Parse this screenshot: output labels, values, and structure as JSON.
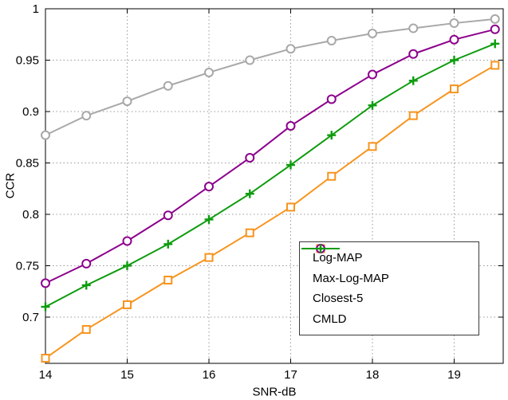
{
  "chart_data": {
    "type": "line",
    "title": "",
    "xlabel": "SNR-dB",
    "ylabel": "CCR",
    "grid": true,
    "legend_position": "inside-lower-right",
    "xlim": [
      14,
      19.6
    ],
    "ylim": [
      0.655,
      1.0
    ],
    "xticks": [
      14,
      15,
      16,
      17,
      18,
      19
    ],
    "yticks": [
      0.7,
      0.75,
      0.8,
      0.85,
      0.9,
      0.95,
      1
    ],
    "x": [
      14,
      14.5,
      15,
      15.5,
      16,
      16.5,
      17,
      17.5,
      18,
      18.5,
      19,
      19.5
    ],
    "series": [
      {
        "name": "Log-MAP",
        "color": "#a8a8a8",
        "marker": "circle",
        "values": [
          0.877,
          0.896,
          0.91,
          0.925,
          0.938,
          0.95,
          0.961,
          0.969,
          0.976,
          0.981,
          0.986,
          0.99
        ]
      },
      {
        "name": "Max-Log-MAP",
        "color": "#f7941e",
        "marker": "square",
        "values": [
          0.66,
          0.688,
          0.712,
          0.736,
          0.758,
          0.782,
          0.807,
          0.837,
          0.866,
          0.896,
          0.922,
          0.945
        ]
      },
      {
        "name": "Closest-5",
        "color": "#8c008c",
        "marker": "circle",
        "values": [
          0.733,
          0.752,
          0.774,
          0.799,
          0.827,
          0.855,
          0.886,
          0.912,
          0.936,
          0.956,
          0.97,
          0.98
        ]
      },
      {
        "name": "CMLD",
        "color": "#0e9c0e",
        "marker": "plus",
        "values": [
          0.71,
          0.731,
          0.75,
          0.771,
          0.795,
          0.82,
          0.848,
          0.877,
          0.906,
          0.93,
          0.95,
          0.966
        ]
      }
    ]
  }
}
